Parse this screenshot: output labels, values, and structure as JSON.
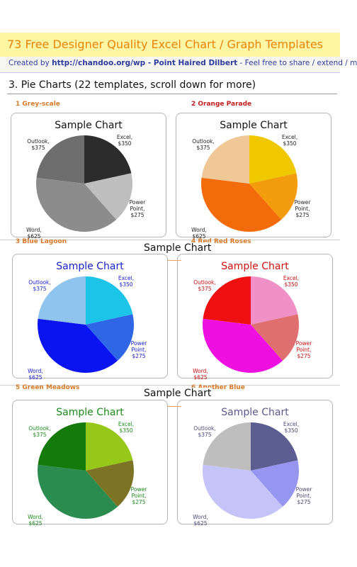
{
  "header": {
    "title": "73 Free Designer Quality Excel Chart / Graph Templates",
    "credit_prefix": "Created by ",
    "credit_url": "http://chandoo.org/wp",
    "credit_mid": " - Point Haired Dilbert",
    "credit_suffix": " - Feel free to share / extend / m"
  },
  "section_title": "3. Pie Charts (22 templates, scroll down for more)",
  "overlays": [
    "Sample Chart",
    "Sample Chart"
  ],
  "templates": [
    {
      "label": "1 Grey-scale"
    },
    {
      "label": "2 Orange Parade"
    },
    {
      "label": "3 Blue Lagoon"
    },
    {
      "label": "4 Red Red Roses"
    },
    {
      "label": "5 Green Meadows"
    },
    {
      "label": "6 Another Blue"
    }
  ],
  "chart_data": [
    {
      "type": "pie",
      "title": "Sample Chart",
      "categories": [
        "Excel",
        "Power Point",
        "Word",
        "Outlook"
      ],
      "values": [
        350,
        275,
        625,
        375
      ],
      "slice_labels": [
        [
          "Excel,",
          "$350"
        ],
        [
          "Power",
          "Point,",
          "$275"
        ],
        [
          "Word,",
          "$625"
        ],
        [
          "Outlook,",
          "$375"
        ]
      ],
      "colors": [
        "#2c2c2c",
        "#bebebe",
        "#8c8c8c",
        "#6e6e6e"
      ],
      "title_color": "#111111",
      "label_color": "#222222"
    },
    {
      "type": "pie",
      "title": "Sample Chart",
      "categories": [
        "Excel",
        "Power Point",
        "Word",
        "Outlook"
      ],
      "values": [
        350,
        275,
        625,
        375
      ],
      "slice_labels": [
        [
          "Excel,",
          "$350"
        ],
        [
          "Power",
          "Point,",
          "$275"
        ],
        [
          "Word,",
          "$625"
        ],
        [
          "Outlook,",
          "$375"
        ]
      ],
      "colors": [
        "#f0c800",
        "#f39c0e",
        "#f46c0a",
        "#f0c898"
      ],
      "title_color": "#111111",
      "label_color": "#222222"
    },
    {
      "type": "pie",
      "title": "Sample Chart",
      "categories": [
        "Excel",
        "Power Point",
        "Word",
        "Outlook"
      ],
      "values": [
        350,
        275,
        625,
        375
      ],
      "slice_labels": [
        [
          "Excel,",
          "$350"
        ],
        [
          "Power",
          "Point,",
          "$275"
        ],
        [
          "Word,",
          "$625"
        ],
        [
          "Outlook,",
          "$375"
        ]
      ],
      "colors": [
        "#1cc4e8",
        "#2e66e6",
        "#0a14f0",
        "#8ec4ee"
      ],
      "title_color": "#1a20c8",
      "label_color": "#1a20c8"
    },
    {
      "type": "pie",
      "title": "Sample Chart",
      "categories": [
        "Excel",
        "Power Point",
        "Word",
        "Outlook"
      ],
      "values": [
        350,
        275,
        625,
        375
      ],
      "slice_labels": [
        [
          "Excel,",
          "$350"
        ],
        [
          "Power",
          "Point,",
          "$275"
        ],
        [
          "Word,",
          "$625"
        ],
        [
          "Outlook,",
          "$375"
        ]
      ],
      "colors": [
        "#ef90c6",
        "#e07070",
        "#ee10e0",
        "#ee1010"
      ],
      "title_color": "#d01010",
      "label_color": "#c81010"
    },
    {
      "type": "pie",
      "title": "Sample Chart",
      "categories": [
        "Excel",
        "Power Point",
        "Word",
        "Outlook"
      ],
      "values": [
        350,
        275,
        625,
        375
      ],
      "slice_labels": [
        [
          "Excel,",
          "$350"
        ],
        [
          "Power",
          "Point,",
          "$275"
        ],
        [
          "Word,",
          "$625"
        ],
        [
          "Outlook,",
          "$375"
        ]
      ],
      "colors": [
        "#96c81a",
        "#7c7424",
        "#2c8c50",
        "#147a0c"
      ],
      "title_color": "#1a8a1a",
      "label_color": "#1a8a1a"
    },
    {
      "type": "pie",
      "title": "Sample Chart",
      "categories": [
        "Excel",
        "Power Point",
        "Word",
        "Outlook"
      ],
      "values": [
        350,
        275,
        625,
        375
      ],
      "slice_labels": [
        [
          "Excel,",
          "$350"
        ],
        [
          "Power",
          "Point,",
          "$275"
        ],
        [
          "Word,",
          "$625"
        ],
        [
          "Outlook,",
          "$375"
        ]
      ],
      "colors": [
        "#5c5e92",
        "#9696f0",
        "#c4c4f8",
        "#bebebe"
      ],
      "title_color": "#5a5a8c",
      "label_color": "#4a4a7a"
    }
  ]
}
